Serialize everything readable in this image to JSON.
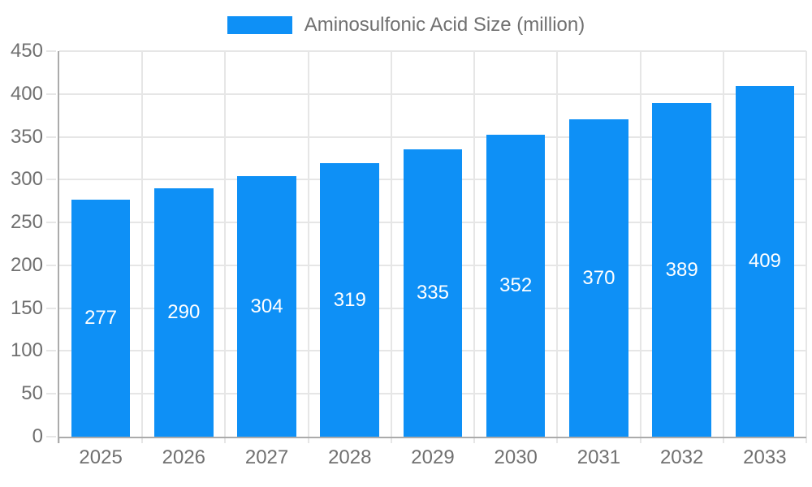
{
  "chart_data": {
    "type": "bar",
    "title": "",
    "legend": {
      "label": "Aminosulfonic Acid Size (million)",
      "position": "top"
    },
    "categories": [
      "2025",
      "2026",
      "2027",
      "2028",
      "2029",
      "2030",
      "2031",
      "2032",
      "2033"
    ],
    "values": [
      277,
      290,
      304,
      319,
      335,
      352,
      370,
      389,
      409
    ],
    "xlabel": "",
    "ylabel": "",
    "ylim": [
      0,
      450
    ],
    "ytick_step": 50,
    "ytick_labels": [
      "0",
      "50",
      "100",
      "150",
      "200",
      "250",
      "300",
      "350",
      "400",
      "450"
    ],
    "grid": true,
    "value_labels_shown": true,
    "colors": {
      "bar": "#0E90F6",
      "bar_label": "#FFFFFF",
      "tick_text": "#707070",
      "grid_line": "#E6E6E6",
      "axis_line": "#ABABAB",
      "background": "#FFFFFF"
    }
  }
}
